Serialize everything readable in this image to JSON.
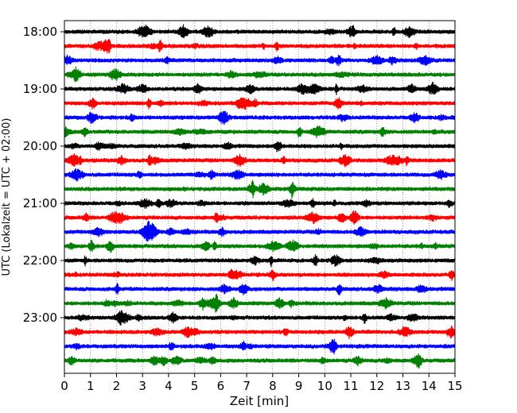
{
  "chart_data": {
    "type": "line",
    "title": "",
    "xlabel": "Zeit  [min]",
    "ylabel": "UTC (Lokalzeit = UTC + 02:00)",
    "xlim": [
      0,
      15
    ],
    "x_ticks": [
      0,
      1,
      2,
      3,
      4,
      5,
      6,
      7,
      8,
      9,
      10,
      11,
      12,
      13,
      14,
      15
    ],
    "y_tick_labels": [
      "18:00",
      "19:00",
      "20:00",
      "21:00",
      "22:00",
      "23:00"
    ],
    "trace_start_times": [
      "18:00",
      "18:15",
      "18:30",
      "18:45",
      "19:00",
      "19:15",
      "19:30",
      "19:45",
      "20:00",
      "20:15",
      "20:30",
      "20:45",
      "21:00",
      "21:15",
      "21:30",
      "21:45",
      "22:00",
      "22:15",
      "22:30",
      "22:45",
      "23:00",
      "23:15",
      "23:30",
      "23:45"
    ],
    "trace_colors": [
      "#000000",
      "#ff0000",
      "#0000ff",
      "#008000"
    ],
    "grid": {
      "x": true,
      "y": false,
      "style": "dotted"
    },
    "legend": "none"
  }
}
